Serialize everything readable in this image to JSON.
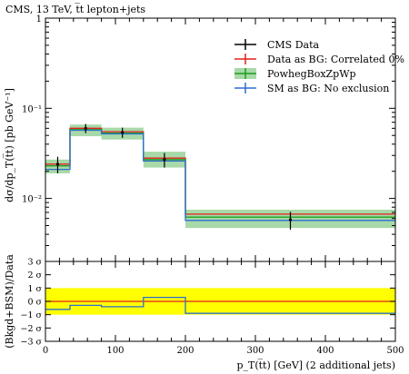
{
  "header": {
    "title": "CMS, 13 TeV, t̅t lepton+jets"
  },
  "chart_data": [
    {
      "panel": "main",
      "type": "line",
      "xlabel": "p_T(t̅t) [GeV] (2 additional jets)",
      "ylabel": "dσ/dp_T(t̅t) [pb GeV⁻¹]",
      "xlim": [
        0,
        500
      ],
      "ylim": [
        0.002,
        1
      ],
      "yscale": "log",
      "x_ticks": [
        0,
        100,
        200,
        300,
        400,
        500
      ],
      "y_tick_labels": [
        "1",
        "10⁻¹",
        "10⁻²"
      ],
      "bin_edges": [
        0,
        35,
        80,
        140,
        200,
        500
      ],
      "legend_position": "top-right",
      "series": [
        {
          "name": "CMS Data",
          "color": "#000000",
          "style": "points",
          "x": [
            17.5,
            57.5,
            110,
            170,
            350
          ],
          "values": [
            0.024,
            0.06,
            0.054,
            0.027,
            0.0058
          ],
          "err": [
            0.005,
            0.007,
            0.007,
            0.005,
            0.0013
          ]
        },
        {
          "name": "Data as BG: Correlated 0%",
          "color": "#e0211b",
          "style": "step",
          "values": [
            0.024,
            0.06,
            0.055,
            0.028,
            0.0067
          ]
        },
        {
          "name": "PowhegBoxZpWp",
          "color": "#1e9e1e",
          "band_color": "#a8d9a8",
          "style": "step-band",
          "values": [
            0.023,
            0.058,
            0.053,
            0.027,
            0.0062
          ],
          "band_low": [
            0.019,
            0.049,
            0.045,
            0.022,
            0.0047
          ],
          "band_high": [
            0.027,
            0.066,
            0.061,
            0.033,
            0.0075
          ]
        },
        {
          "name": "SM as BG: No exclusion",
          "color": "#2c6fd1",
          "style": "step",
          "values": [
            0.021,
            0.057,
            0.052,
            0.026,
            0.0057
          ]
        }
      ]
    },
    {
      "panel": "ratio",
      "type": "line",
      "ylabel": "(Bkgd+BSM)/Data",
      "xlim": [
        0,
        500
      ],
      "ylim": [
        -3,
        3
      ],
      "y_tick_labels": [
        "3 σ",
        "2 σ",
        "1 σ",
        "0 σ",
        "−1 σ",
        "−2 σ",
        "−3 σ"
      ],
      "x_tick_labels": [
        "0",
        "100",
        "200",
        "300",
        "400",
        "500"
      ],
      "band": {
        "low": -1,
        "high": 1,
        "color": "#ffff00"
      },
      "series": [
        {
          "name": "Data as BG: Correlated 0%",
          "color": "#e0211b",
          "values": [
            0,
            0,
            0,
            0,
            0
          ]
        },
        {
          "name": "SM as BG: No exclusion",
          "color": "#2c6fd1",
          "values": [
            -0.6,
            -0.3,
            -0.4,
            0.3,
            -0.9
          ]
        }
      ]
    }
  ]
}
